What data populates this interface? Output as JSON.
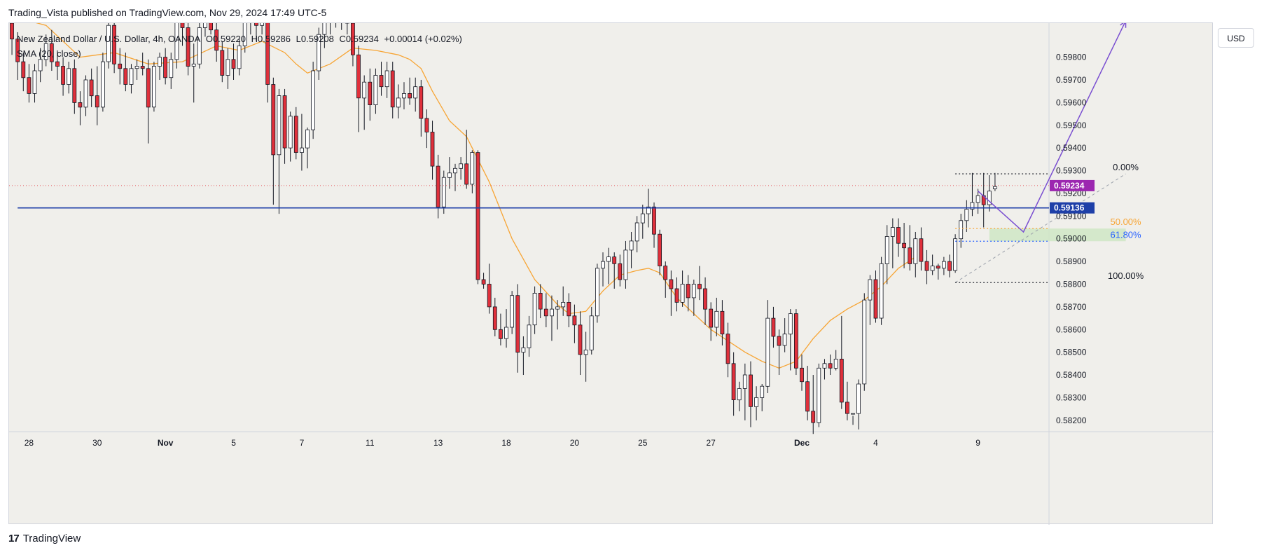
{
  "publisher_line": "Trading_Vista published on TradingView.com, Nov 29, 2024 17:49 UTC-5",
  "legend": {
    "title": "New Zealand Dollar / U.S. Dollar, 4h, OANDA",
    "o": "O0.59220",
    "h": "H0.59286",
    "l": "L0.59208",
    "c": "C0.59234",
    "change": "+0.00014 (+0.02%)",
    "indicator": "SMA (20, close)"
  },
  "currency_button": "USD",
  "brand": {
    "logo": "17",
    "name": "TradingView"
  },
  "colors": {
    "background": "#f0efeb",
    "up_candle": "#ffffff",
    "down_candle": "#e0303b",
    "wick": "#131722",
    "sma": "#f7a535",
    "support_line": "#1e3fa8",
    "projection": "#7a4fd1",
    "price_badge": "#9c27b0",
    "level_badge": "#1e3fa8",
    "zone": "#cfe6c6"
  },
  "chart_data": {
    "type": "candlestick",
    "symbol": "NZDUSD",
    "timeframe": "4h",
    "ylim": [
      0.5815,
      0.5995
    ],
    "y_ticks": [
      "0.58200",
      "0.58300",
      "0.58400",
      "0.58500",
      "0.58600",
      "0.58700",
      "0.58800",
      "0.58900",
      "0.59000",
      "0.59100",
      "0.59200",
      "0.59300",
      "0.59400",
      "0.59500",
      "0.59600",
      "0.59700",
      "0.59800"
    ],
    "x_ticks": [
      {
        "label": "28",
        "bar": 3
      },
      {
        "label": "30",
        "bar": 15
      },
      {
        "label": "Nov",
        "bar": 27
      },
      {
        "label": "5",
        "bar": 39
      },
      {
        "label": "7",
        "bar": 51
      },
      {
        "label": "11",
        "bar": 63
      },
      {
        "label": "13",
        "bar": 75
      },
      {
        "label": "18",
        "bar": 87
      },
      {
        "label": "20",
        "bar": 99
      },
      {
        "label": "25",
        "bar": 111
      },
      {
        "label": "27",
        "bar": 123
      },
      {
        "label": "Dec",
        "bar": 139
      },
      {
        "label": "4",
        "bar": 152
      },
      {
        "label": "9",
        "bar": 170
      }
    ],
    "total_slots": 183,
    "candles": [
      [
        0.5995,
        0.5999,
        0.5981,
        0.5988
      ],
      [
        0.5988,
        0.5991,
        0.597,
        0.5978
      ],
      [
        0.5978,
        0.5982,
        0.5965,
        0.5971
      ],
      [
        0.5971,
        0.5977,
        0.596,
        0.5964
      ],
      [
        0.5964,
        0.5977,
        0.596,
        0.5974
      ],
      [
        0.5974,
        0.5984,
        0.5969,
        0.5979
      ],
      [
        0.5979,
        0.599,
        0.5976,
        0.5986
      ],
      [
        0.5986,
        0.5992,
        0.5974,
        0.5978
      ],
      [
        0.5978,
        0.5983,
        0.597,
        0.5976
      ],
      [
        0.5976,
        0.598,
        0.5963,
        0.5968
      ],
      [
        0.5968,
        0.5978,
        0.5964,
        0.5975
      ],
      [
        0.5975,
        0.5979,
        0.5955,
        0.596
      ],
      [
        0.596,
        0.5965,
        0.595,
        0.5958
      ],
      [
        0.5958,
        0.5972,
        0.5954,
        0.597
      ],
      [
        0.597,
        0.5975,
        0.5958,
        0.5963
      ],
      [
        0.5963,
        0.5976,
        0.595,
        0.5958
      ],
      [
        0.5958,
        0.5982,
        0.5956,
        0.5978
      ],
      [
        0.5978,
        0.5998,
        0.5975,
        0.5994
      ],
      [
        0.5994,
        0.5999,
        0.5973,
        0.5977
      ],
      [
        0.5977,
        0.5984,
        0.5968,
        0.5975
      ],
      [
        0.5975,
        0.5982,
        0.5965,
        0.5968
      ],
      [
        0.5968,
        0.5977,
        0.5964,
        0.5975
      ],
      [
        0.5975,
        0.5979,
        0.597,
        0.5976
      ],
      [
        0.5976,
        0.5982,
        0.5972,
        0.5975
      ],
      [
        0.5975,
        0.5979,
        0.5942,
        0.5958
      ],
      [
        0.5958,
        0.5978,
        0.5956,
        0.5976
      ],
      [
        0.5976,
        0.5982,
        0.597,
        0.598
      ],
      [
        0.598,
        0.5984,
        0.5968,
        0.5971
      ],
      [
        0.5971,
        0.5982,
        0.5966,
        0.5979
      ],
      [
        0.5979,
        0.5999,
        0.5975,
        0.5996
      ],
      [
        0.5996,
        0.5999,
        0.5985,
        0.5993
      ],
      [
        0.5993,
        0.5999,
        0.5972,
        0.5976
      ],
      [
        0.5976,
        0.5986,
        0.596,
        0.5977
      ],
      [
        0.5977,
        0.5996,
        0.5975,
        0.5993
      ],
      [
        0.5993,
        0.5999,
        0.5989,
        0.5998
      ],
      [
        0.5998,
        0.5999,
        0.599,
        0.5992
      ],
      [
        0.5992,
        0.5996,
        0.5978,
        0.5983
      ],
      [
        0.5983,
        0.5987,
        0.5969,
        0.5972
      ],
      [
        0.5972,
        0.5984,
        0.5966,
        0.5979
      ],
      [
        0.5979,
        0.5986,
        0.597,
        0.5975
      ],
      [
        0.5975,
        0.5988,
        0.5972,
        0.5985
      ],
      [
        0.5985,
        0.5999,
        0.5982,
        0.5996
      ],
      [
        0.5996,
        0.5999,
        0.599,
        0.5998
      ],
      [
        0.5998,
        0.5999,
        0.5987,
        0.5994
      ],
      [
        0.5994,
        0.5999,
        0.599,
        0.5998
      ],
      [
        0.5998,
        0.5999,
        0.596,
        0.5968
      ],
      [
        0.5968,
        0.5971,
        0.5915,
        0.5937
      ],
      [
        0.5937,
        0.5966,
        0.5911,
        0.5963
      ],
      [
        0.5963,
        0.5966,
        0.5933,
        0.594
      ],
      [
        0.594,
        0.5956,
        0.5934,
        0.5954
      ],
      [
        0.5954,
        0.5958,
        0.5935,
        0.5938
      ],
      [
        0.5938,
        0.5955,
        0.593,
        0.594
      ],
      [
        0.594,
        0.5949,
        0.5931,
        0.5948
      ],
      [
        0.5948,
        0.5978,
        0.5944,
        0.5974
      ],
      [
        0.5974,
        0.5993,
        0.597,
        0.599
      ],
      [
        0.599,
        0.5999,
        0.5984,
        0.5996
      ],
      [
        0.5996,
        0.5999,
        0.599,
        0.5998
      ],
      [
        0.5998,
        0.5999,
        0.5993,
        0.5997
      ],
      [
        0.5997,
        0.5999,
        0.5992,
        0.5999
      ],
      [
        0.5999,
        0.5999,
        0.599,
        0.5995
      ],
      [
        0.5995,
        0.5999,
        0.5976,
        0.5981
      ],
      [
        0.5981,
        0.5985,
        0.5947,
        0.5962
      ],
      [
        0.5962,
        0.5972,
        0.5948,
        0.5969
      ],
      [
        0.5969,
        0.5975,
        0.5952,
        0.5959
      ],
      [
        0.5959,
        0.5975,
        0.5955,
        0.5972
      ],
      [
        0.5972,
        0.5978,
        0.5963,
        0.5967
      ],
      [
        0.5967,
        0.5978,
        0.5962,
        0.5974
      ],
      [
        0.5974,
        0.5978,
        0.5953,
        0.5958
      ],
      [
        0.5958,
        0.5968,
        0.5953,
        0.5962
      ],
      [
        0.5962,
        0.5969,
        0.5957,
        0.5964
      ],
      [
        0.5964,
        0.5971,
        0.5959,
        0.5962
      ],
      [
        0.5962,
        0.5971,
        0.5956,
        0.5967
      ],
      [
        0.5967,
        0.597,
        0.5945,
        0.5953
      ],
      [
        0.5953,
        0.5957,
        0.594,
        0.5947
      ],
      [
        0.5947,
        0.5952,
        0.5926,
        0.5932
      ],
      [
        0.5932,
        0.5937,
        0.5909,
        0.5914
      ],
      [
        0.5914,
        0.593,
        0.5911,
        0.5927
      ],
      [
        0.5927,
        0.5936,
        0.5922,
        0.5929
      ],
      [
        0.5929,
        0.5933,
        0.5921,
        0.5931
      ],
      [
        0.5931,
        0.5936,
        0.5926,
        0.5933
      ],
      [
        0.5933,
        0.5948,
        0.5922,
        0.5924
      ],
      [
        0.5924,
        0.5939,
        0.592,
        0.5938
      ],
      [
        0.5938,
        0.5939,
        0.588,
        0.5882
      ],
      [
        0.5882,
        0.5885,
        0.5878,
        0.588
      ],
      [
        0.588,
        0.5889,
        0.5867,
        0.587
      ],
      [
        0.587,
        0.5874,
        0.5857,
        0.586
      ],
      [
        0.586,
        0.5867,
        0.5853,
        0.5856
      ],
      [
        0.5856,
        0.5869,
        0.5852,
        0.5861
      ],
      [
        0.5861,
        0.5877,
        0.5858,
        0.5875
      ],
      [
        0.5875,
        0.588,
        0.5841,
        0.585
      ],
      [
        0.585,
        0.5857,
        0.584,
        0.5852
      ],
      [
        0.5852,
        0.5866,
        0.5848,
        0.5862
      ],
      [
        0.5862,
        0.5879,
        0.5858,
        0.5876
      ],
      [
        0.5876,
        0.588,
        0.5865,
        0.5869
      ],
      [
        0.5869,
        0.5876,
        0.5861,
        0.5866
      ],
      [
        0.5866,
        0.5875,
        0.5855,
        0.5869
      ],
      [
        0.5869,
        0.5873,
        0.586,
        0.587
      ],
      [
        0.587,
        0.5879,
        0.5866,
        0.5872
      ],
      [
        0.5872,
        0.5876,
        0.5861,
        0.5866
      ],
      [
        0.5866,
        0.5871,
        0.5854,
        0.5862
      ],
      [
        0.5862,
        0.5868,
        0.584,
        0.5849
      ],
      [
        0.5849,
        0.5859,
        0.5837,
        0.5851
      ],
      [
        0.5851,
        0.587,
        0.5849,
        0.5866
      ],
      [
        0.5866,
        0.5889,
        0.5863,
        0.5887
      ],
      [
        0.5887,
        0.5894,
        0.5879,
        0.589
      ],
      [
        0.589,
        0.5896,
        0.588,
        0.5892
      ],
      [
        0.5892,
        0.5894,
        0.5878,
        0.5889
      ],
      [
        0.5889,
        0.5893,
        0.5879,
        0.5882
      ],
      [
        0.5882,
        0.5899,
        0.5878,
        0.5895
      ],
      [
        0.5895,
        0.5903,
        0.5887,
        0.5899
      ],
      [
        0.5899,
        0.591,
        0.5894,
        0.5907
      ],
      [
        0.5907,
        0.5915,
        0.59,
        0.5911
      ],
      [
        0.5911,
        0.5922,
        0.5905,
        0.5914
      ],
      [
        0.5914,
        0.5916,
        0.5896,
        0.5902
      ],
      [
        0.5902,
        0.5904,
        0.5884,
        0.5888
      ],
      [
        0.5888,
        0.589,
        0.5874,
        0.5882
      ],
      [
        0.5882,
        0.5886,
        0.5866,
        0.5878
      ],
      [
        0.5878,
        0.5883,
        0.5868,
        0.5872
      ],
      [
        0.5872,
        0.5886,
        0.587,
        0.588
      ],
      [
        0.588,
        0.5884,
        0.5868,
        0.5874
      ],
      [
        0.5874,
        0.5882,
        0.5866,
        0.588
      ],
      [
        0.588,
        0.5888,
        0.5873,
        0.5878
      ],
      [
        0.5878,
        0.5883,
        0.5862,
        0.5869
      ],
      [
        0.5869,
        0.5872,
        0.5855,
        0.5861
      ],
      [
        0.5861,
        0.5874,
        0.5857,
        0.5868
      ],
      [
        0.5868,
        0.5873,
        0.5853,
        0.5858
      ],
      [
        0.5858,
        0.5863,
        0.5839,
        0.5845
      ],
      [
        0.5845,
        0.585,
        0.5822,
        0.5829
      ],
      [
        0.5829,
        0.5837,
        0.5824,
        0.5834
      ],
      [
        0.5834,
        0.5845,
        0.582,
        0.584
      ],
      [
        0.584,
        0.5846,
        0.5817,
        0.5826
      ],
      [
        0.5826,
        0.5835,
        0.582,
        0.583
      ],
      [
        0.583,
        0.5836,
        0.5824,
        0.5835
      ],
      [
        0.5835,
        0.5873,
        0.5832,
        0.5865
      ],
      [
        0.5865,
        0.587,
        0.5852,
        0.5857
      ],
      [
        0.5857,
        0.586,
        0.584,
        0.5853
      ],
      [
        0.5853,
        0.5865,
        0.585,
        0.5858
      ],
      [
        0.5858,
        0.5869,
        0.5842,
        0.5867
      ],
      [
        0.5867,
        0.5869,
        0.584,
        0.5843
      ],
      [
        0.5843,
        0.5849,
        0.5833,
        0.5837
      ],
      [
        0.5837,
        0.5844,
        0.582,
        0.5824
      ],
      [
        0.5824,
        0.584,
        0.5814,
        0.5819
      ],
      [
        0.5819,
        0.5845,
        0.5817,
        0.5843
      ],
      [
        0.5843,
        0.5847,
        0.5838,
        0.5845
      ],
      [
        0.5845,
        0.5849,
        0.584,
        0.5843
      ],
      [
        0.5843,
        0.5851,
        0.5842,
        0.5847
      ],
      [
        0.5847,
        0.5866,
        0.5825,
        0.5828
      ],
      [
        0.5828,
        0.5837,
        0.582,
        0.5823
      ],
      [
        0.5823,
        0.5822,
        0.5818,
        0.5823
      ],
      [
        0.5823,
        0.5838,
        0.5816,
        0.5836
      ],
      [
        0.5836,
        0.5876,
        0.5833,
        0.5873
      ],
      [
        0.5873,
        0.5884,
        0.5862,
        0.5882
      ],
      [
        0.5882,
        0.5886,
        0.5863,
        0.5865
      ],
      [
        0.5865,
        0.5892,
        0.5862,
        0.5889
      ],
      [
        0.5889,
        0.5906,
        0.588,
        0.5901
      ],
      [
        0.5901,
        0.5909,
        0.5887,
        0.5905
      ],
      [
        0.5905,
        0.5909,
        0.5892,
        0.5898
      ],
      [
        0.5898,
        0.5907,
        0.5887,
        0.5896
      ],
      [
        0.5896,
        0.5906,
        0.5886,
        0.5889
      ],
      [
        0.5889,
        0.5903,
        0.5883,
        0.59
      ],
      [
        0.59,
        0.5905,
        0.5886,
        0.589
      ],
      [
        0.589,
        0.5895,
        0.588,
        0.5886
      ],
      [
        0.5886,
        0.5893,
        0.5884,
        0.5888
      ],
      [
        0.5888,
        0.5889,
        0.5882,
        0.5887
      ],
      [
        0.5887,
        0.5892,
        0.5884,
        0.589
      ],
      [
        0.589,
        0.5893,
        0.5883,
        0.5886
      ],
      [
        0.5886,
        0.5902,
        0.5885,
        0.59
      ],
      [
        0.59,
        0.5911,
        0.5896,
        0.5908
      ],
      [
        0.5908,
        0.5917,
        0.5903,
        0.5913
      ],
      [
        0.5913,
        0.5929,
        0.591,
        0.5916
      ],
      [
        0.5916,
        0.5922,
        0.5911,
        0.5919
      ],
      [
        0.5919,
        0.5929,
        0.5905,
        0.5915
      ],
      [
        0.5915,
        0.5928,
        0.5912,
        0.5921
      ],
      [
        0.5922,
        0.5929,
        0.5921,
        0.5923
      ]
    ],
    "sma": [
      [
        0,
        0.5998
      ],
      [
        6,
        0.5994
      ],
      [
        12,
        0.598
      ],
      [
        18,
        0.5982
      ],
      [
        24,
        0.5977
      ],
      [
        30,
        0.5978
      ],
      [
        36,
        0.5985
      ],
      [
        40,
        0.5983
      ],
      [
        44,
        0.5987
      ],
      [
        48,
        0.5982
      ],
      [
        50,
        0.5977
      ],
      [
        52,
        0.5973
      ],
      [
        56,
        0.5977
      ],
      [
        60,
        0.5984
      ],
      [
        64,
        0.5983
      ],
      [
        68,
        0.5981
      ],
      [
        70,
        0.5979
      ],
      [
        72,
        0.5975
      ],
      [
        74,
        0.5965
      ],
      [
        77,
        0.5952
      ],
      [
        80,
        0.5945
      ],
      [
        84,
        0.5925
      ],
      [
        88,
        0.59
      ],
      [
        92,
        0.5882
      ],
      [
        96,
        0.5871
      ],
      [
        98,
        0.5867
      ],
      [
        101,
        0.5868
      ],
      [
        104,
        0.5877
      ],
      [
        107,
        0.5884
      ],
      [
        110,
        0.5886
      ],
      [
        112,
        0.5887
      ],
      [
        114,
        0.5885
      ],
      [
        117,
        0.5874
      ],
      [
        120,
        0.5867
      ],
      [
        123,
        0.586
      ],
      [
        126,
        0.5855
      ],
      [
        129,
        0.585
      ],
      [
        132,
        0.5846
      ],
      [
        135,
        0.5843
      ],
      [
        138,
        0.5846
      ],
      [
        141,
        0.5856
      ],
      [
        144,
        0.5864
      ],
      [
        147,
        0.5869
      ],
      [
        150,
        0.5873
      ],
      [
        153,
        0.5879
      ],
      [
        156,
        0.5887
      ],
      [
        159,
        0.5892
      ]
    ],
    "support_level": {
      "price": 0.59136,
      "label": "0.59136",
      "from_slot": 1
    },
    "current_price": {
      "price": 0.59234,
      "label": "0.59234"
    },
    "fib": {
      "start_slot": 166,
      "end_slot": 180,
      "levels": [
        {
          "label": "0.00%",
          "price": 0.59286,
          "color": "#131722"
        },
        {
          "label": "50.00%",
          "price": 0.59045,
          "color": "#f7a535"
        },
        {
          "label": "61.80%",
          "price": 0.58989,
          "color": "#2962ff"
        },
        {
          "label": "100.00%",
          "price": 0.58807,
          "color": "#131722"
        }
      ],
      "zone": [
        0.59045,
        0.58989
      ]
    },
    "projection": [
      [
        170,
        0.5921
      ],
      [
        178,
        0.5903
      ],
      [
        196,
        0.5996
      ]
    ]
  }
}
